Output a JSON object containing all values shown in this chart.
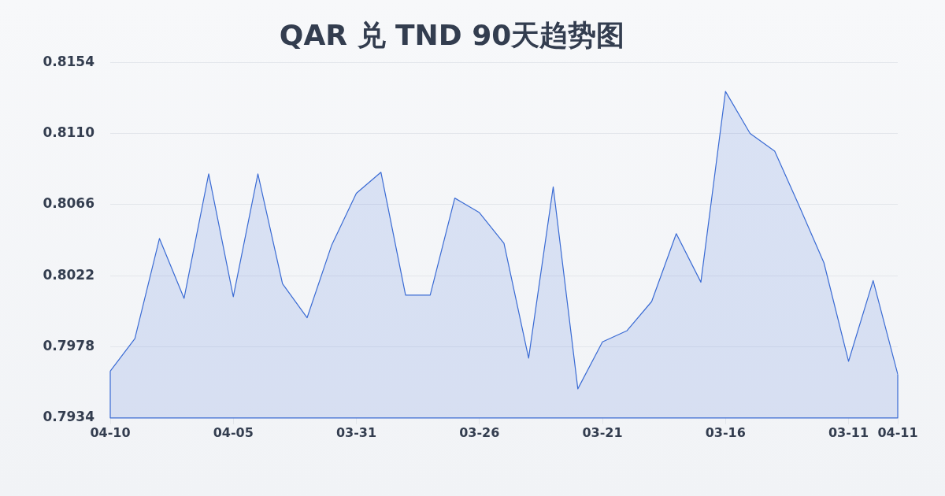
{
  "chart_data": {
    "type": "area",
    "title": "QAR 兑 TND 90天趋势图",
    "categories": [
      "04-10",
      null,
      null,
      null,
      null,
      "04-05",
      null,
      null,
      null,
      null,
      "03-31",
      null,
      null,
      null,
      null,
      "03-26",
      null,
      null,
      null,
      null,
      "03-21",
      null,
      null,
      null,
      null,
      "03-16",
      null,
      null,
      null,
      null,
      "03-11",
      null,
      "04-11"
    ],
    "values": [
      0.7963,
      0.7983,
      0.8045,
      0.8008,
      0.8085,
      0.8009,
      0.8085,
      0.8017,
      0.7996,
      0.8041,
      0.8073,
      0.8086,
      0.801,
      0.801,
      0.807,
      0.8061,
      0.8042,
      0.7971,
      0.8077,
      0.7952,
      0.7981,
      0.7988,
      0.8006,
      0.8048,
      0.8018,
      0.8136,
      0.811,
      0.8099,
      0.8065,
      0.803,
      0.7969,
      0.8019,
      0.7961
    ],
    "color": "#3a6bd4",
    "ylim": [
      0.7934,
      0.8154
    ],
    "yticks": [
      0.7934,
      0.7978,
      0.8022,
      0.8066,
      {
        "value": 0.811,
        "label": "0.8110"
      },
      0.8154
    ],
    "grid": "y"
  }
}
